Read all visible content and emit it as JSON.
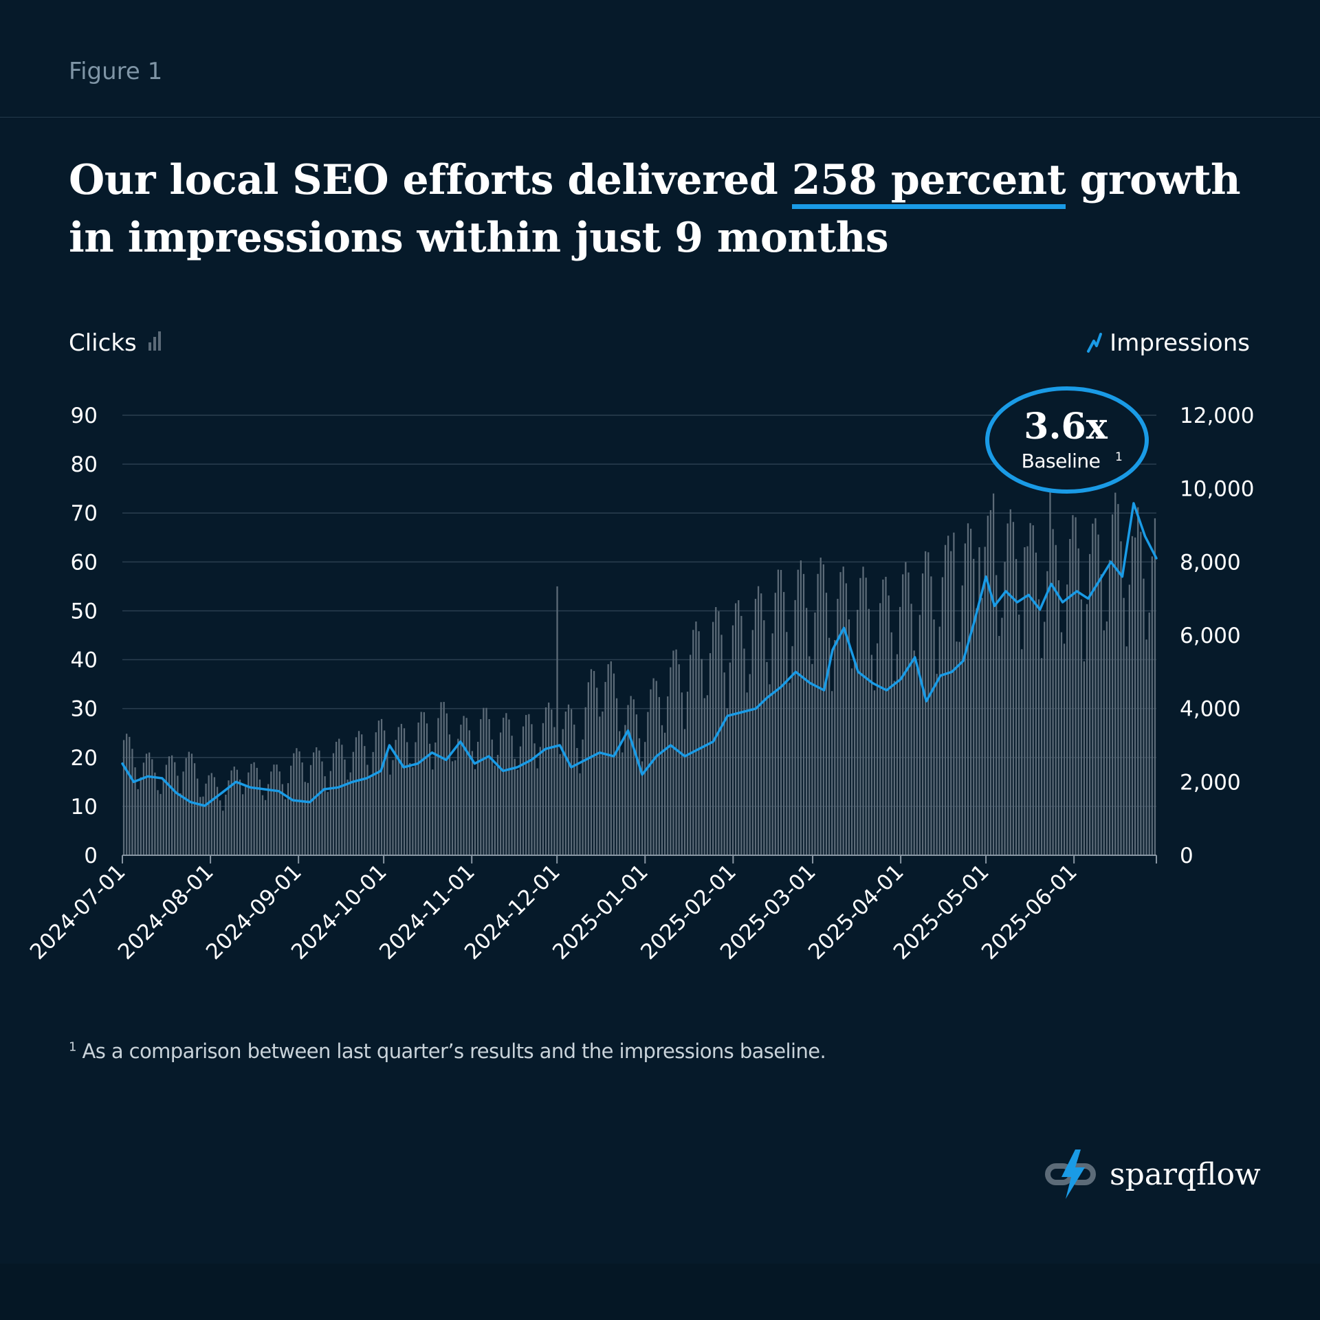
{
  "figure_label": "Figure 1",
  "title": {
    "before": "Our local SEO efforts delivered ",
    "highlight": "258 percent",
    "after": " growth in impressions within just 9 months"
  },
  "footnote": {
    "marker": "1",
    "text": " As a comparison between last quarter’s results and the impressions baseline."
  },
  "logo": {
    "text": "sparqflow",
    "icon": "lightning-chain-icon"
  },
  "colors": {
    "background": "#061a2a",
    "accent": "#1a9be6",
    "bars": "#5c6b78",
    "gridline": "#2b3f50"
  },
  "chart_data": {
    "type": "bar+line",
    "date_range": [
      "2024-07-01",
      "2025-06-30"
    ],
    "left_axis": {
      "label": "Clicks",
      "icon": "bar-chart-icon",
      "range": [
        0,
        90
      ],
      "ticks": [
        "0",
        "10",
        "20",
        "30",
        "40",
        "50",
        "60",
        "70",
        "80",
        "90"
      ]
    },
    "right_axis": {
      "label": "Impressions",
      "icon": "trend-line-icon",
      "range": [
        0,
        12000
      ],
      "ticks": [
        "0",
        "2,000",
        "4,000",
        "6,000",
        "8,000",
        "10,000",
        "12,000"
      ]
    },
    "x_ticks": [
      "2024-07-01",
      "2024-08-01",
      "2024-09-01",
      "2024-10-01",
      "2024-11-01",
      "2024-12-01",
      "2025-01-01",
      "2025-02-01",
      "2025-03-01",
      "2025-04-01",
      "2025-05-01",
      "2025-06-01"
    ],
    "series": [
      {
        "name": "Clicks",
        "kind": "bar",
        "axis": "left",
        "weekly_average": [
          20,
          17,
          15,
          18,
          14,
          12,
          16,
          14,
          15,
          18,
          17,
          19,
          20,
          22,
          21,
          23,
          25,
          22,
          24,
          23,
          22,
          24,
          25,
          23,
          35,
          28,
          24,
          30,
          34,
          38,
          40,
          41,
          43,
          46,
          47,
          48,
          46,
          47,
          44,
          46,
          48,
          50,
          52,
          54,
          56,
          55,
          53,
          52,
          55,
          54,
          58,
          56
        ],
        "notable_days": [
          {
            "date": "2024-12-01",
            "value": 55
          },
          {
            "date": "2025-04-20",
            "value": 66
          },
          {
            "date": "2025-04-29",
            "value": 63
          },
          {
            "date": "2025-05-04",
            "value": 74
          },
          {
            "date": "2025-05-15",
            "value": 63
          },
          {
            "date": "2025-05-24",
            "value": 79
          },
          {
            "date": "2025-06-23",
            "value": 65
          }
        ]
      },
      {
        "name": "Impressions",
        "kind": "line",
        "axis": "right",
        "points": [
          {
            "date": "2024-07-01",
            "value": 2500
          },
          {
            "date": "2024-07-05",
            "value": 2000
          },
          {
            "date": "2024-07-10",
            "value": 2150
          },
          {
            "date": "2024-07-15",
            "value": 2100
          },
          {
            "date": "2024-07-20",
            "value": 1700
          },
          {
            "date": "2024-07-25",
            "value": 1450
          },
          {
            "date": "2024-07-30",
            "value": 1350
          },
          {
            "date": "2024-08-05",
            "value": 1700
          },
          {
            "date": "2024-08-10",
            "value": 2000
          },
          {
            "date": "2024-08-15",
            "value": 1850
          },
          {
            "date": "2024-08-20",
            "value": 1800
          },
          {
            "date": "2024-08-25",
            "value": 1750
          },
          {
            "date": "2024-08-30",
            "value": 1500
          },
          {
            "date": "2024-09-05",
            "value": 1450
          },
          {
            "date": "2024-09-10",
            "value": 1800
          },
          {
            "date": "2024-09-15",
            "value": 1850
          },
          {
            "date": "2024-09-20",
            "value": 2000
          },
          {
            "date": "2024-09-25",
            "value": 2100
          },
          {
            "date": "2024-09-30",
            "value": 2300
          },
          {
            "date": "2024-10-03",
            "value": 3000
          },
          {
            "date": "2024-10-08",
            "value": 2400
          },
          {
            "date": "2024-10-13",
            "value": 2500
          },
          {
            "date": "2024-10-18",
            "value": 2800
          },
          {
            "date": "2024-10-23",
            "value": 2600
          },
          {
            "date": "2024-10-28",
            "value": 3100
          },
          {
            "date": "2024-11-02",
            "value": 2500
          },
          {
            "date": "2024-11-07",
            "value": 2700
          },
          {
            "date": "2024-11-12",
            "value": 2300
          },
          {
            "date": "2024-11-17",
            "value": 2400
          },
          {
            "date": "2024-11-22",
            "value": 2600
          },
          {
            "date": "2024-11-27",
            "value": 2900
          },
          {
            "date": "2024-12-02",
            "value": 3000
          },
          {
            "date": "2024-12-06",
            "value": 2400
          },
          {
            "date": "2024-12-11",
            "value": 2600
          },
          {
            "date": "2024-12-16",
            "value": 2800
          },
          {
            "date": "2024-12-21",
            "value": 2700
          },
          {
            "date": "2024-12-26",
            "value": 3400
          },
          {
            "date": "2024-12-31",
            "value": 2200
          },
          {
            "date": "2025-01-05",
            "value": 2700
          },
          {
            "date": "2025-01-10",
            "value": 3000
          },
          {
            "date": "2025-01-15",
            "value": 2700
          },
          {
            "date": "2025-01-20",
            "value": 2900
          },
          {
            "date": "2025-01-25",
            "value": 3100
          },
          {
            "date": "2025-01-30",
            "value": 3800
          },
          {
            "date": "2025-02-04",
            "value": 3900
          },
          {
            "date": "2025-02-09",
            "value": 4000
          },
          {
            "date": "2025-02-13",
            "value": 4300
          },
          {
            "date": "2025-02-18",
            "value": 4600
          },
          {
            "date": "2025-02-23",
            "value": 5000
          },
          {
            "date": "2025-02-28",
            "value": 4700
          },
          {
            "date": "2025-03-05",
            "value": 4500
          },
          {
            "date": "2025-03-08",
            "value": 5600
          },
          {
            "date": "2025-03-12",
            "value": 6200
          },
          {
            "date": "2025-03-17",
            "value": 5000
          },
          {
            "date": "2025-03-22",
            "value": 4700
          },
          {
            "date": "2025-03-27",
            "value": 4500
          },
          {
            "date": "2025-04-01",
            "value": 4800
          },
          {
            "date": "2025-04-06",
            "value": 5400
          },
          {
            "date": "2025-04-10",
            "value": 4200
          },
          {
            "date": "2025-04-15",
            "value": 4900
          },
          {
            "date": "2025-04-19",
            "value": 5000
          },
          {
            "date": "2025-04-23",
            "value": 5300
          },
          {
            "date": "2025-04-27",
            "value": 6400
          },
          {
            "date": "2025-05-01",
            "value": 7600
          },
          {
            "date": "2025-05-04",
            "value": 6800
          },
          {
            "date": "2025-05-08",
            "value": 7200
          },
          {
            "date": "2025-05-12",
            "value": 6900
          },
          {
            "date": "2025-05-16",
            "value": 7100
          },
          {
            "date": "2025-05-20",
            "value": 6700
          },
          {
            "date": "2025-05-24",
            "value": 7400
          },
          {
            "date": "2025-05-28",
            "value": 6900
          },
          {
            "date": "2025-06-02",
            "value": 7200
          },
          {
            "date": "2025-06-06",
            "value": 7000
          },
          {
            "date": "2025-06-10",
            "value": 7500
          },
          {
            "date": "2025-06-14",
            "value": 8000
          },
          {
            "date": "2025-06-18",
            "value": 7600
          },
          {
            "date": "2025-06-22",
            "value": 9600
          },
          {
            "date": "2025-06-26",
            "value": 8700
          },
          {
            "date": "2025-06-30",
            "value": 8100
          }
        ]
      }
    ],
    "annotation": {
      "value": "3.6x",
      "label": "Baseline",
      "marker": "1"
    },
    "grid": true
  }
}
